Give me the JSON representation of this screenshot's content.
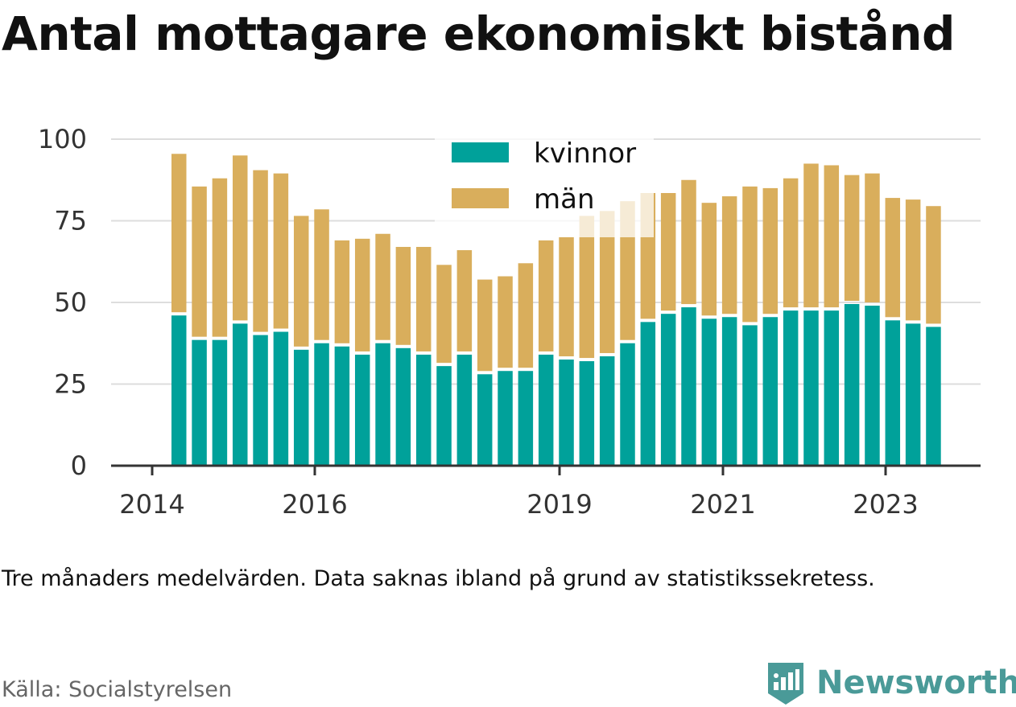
{
  "title": "Antal mottagare ekonomiskt bistånd",
  "note": "Tre månaders medelvärden. Data saknas ibland på grund av statistikssekretess.",
  "source": "Källa: Socialstyrelsen",
  "brand": "Newsworthy",
  "colors": {
    "kvinnor": "#00a19a",
    "man": "#d9ae5c",
    "grid": "#dddddd",
    "axis": "#333333",
    "brand": "#4a9a98"
  },
  "chart_data": {
    "type": "bar",
    "stacked": true,
    "yticks": [
      0,
      25,
      50,
      75,
      100
    ],
    "ylim": [
      0,
      100
    ],
    "xticks": [
      "2014",
      "2016",
      "2019",
      "2021",
      "2023"
    ],
    "legend": [
      "kvinnor",
      "män"
    ],
    "legend_position": "top-center",
    "grid": true,
    "series": [
      {
        "name": "kvinnor",
        "values": [
          46.5,
          39,
          39,
          44,
          40.5,
          41.5,
          36,
          38,
          37,
          34.5,
          38,
          36.5,
          34.5,
          31,
          34.5,
          28.5,
          29.5,
          29.5,
          34.5,
          33,
          32.5,
          34,
          38,
          44.5,
          47,
          49,
          45.5,
          46,
          43.5,
          46,
          48,
          48,
          48,
          50,
          49.5,
          45,
          44,
          43
        ]
      },
      {
        "name": "män",
        "values": [
          49,
          46.5,
          49,
          51,
          50,
          48,
          40.5,
          40.5,
          32,
          35,
          33,
          30.5,
          32.5,
          30.5,
          31.5,
          28.5,
          28.5,
          32.5,
          34.5,
          37,
          44,
          44,
          43,
          39,
          36.5,
          38.5,
          35,
          36.5,
          42,
          39,
          40,
          44.5,
          44,
          39,
          40,
          37,
          37.5,
          36.5
        ]
      }
    ]
  }
}
